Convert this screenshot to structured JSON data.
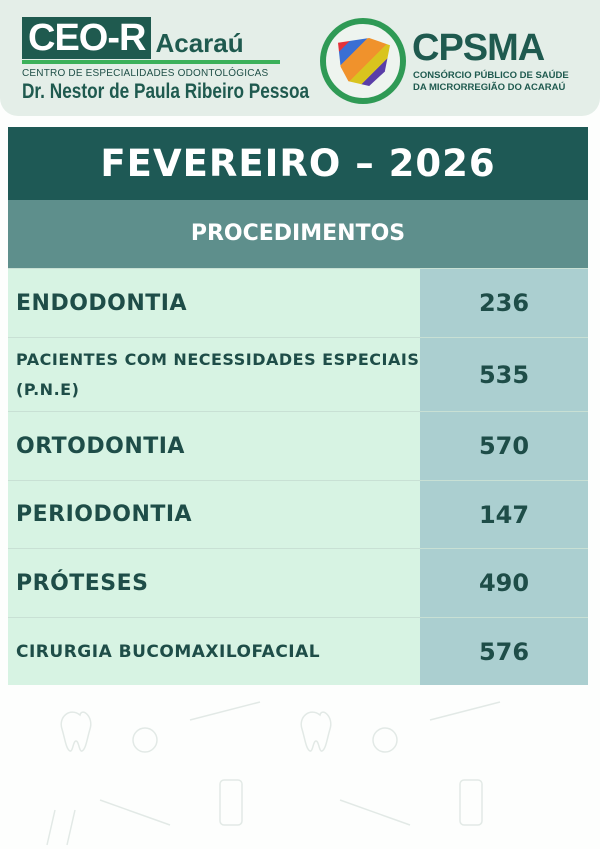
{
  "header": {
    "ceo_logo": "CEO-R",
    "ceo_city": "Acaraú",
    "ceo_subtitle": "CENTRO DE ESPECIALIDADES ODONTOLÓGICAS",
    "ceo_name": "Dr. Nestor de Paula Ribeiro Pessoa",
    "cpsma_logo": "CPSMA",
    "cpsma_line1": "CONSÓRCIO PÚBLICO DE SAÚDE",
    "cpsma_line2": "DA MICRORREGIÃO DO ACARAÚ"
  },
  "table": {
    "title": "FEVEREIRO – 2026",
    "column_header": "PROCEDIMENTOS",
    "rows": [
      {
        "label": "ENDODONTIA",
        "value": "236"
      },
      {
        "label": "PACIENTES COM NECESSIDADES ESPECIAIS (P.N.E)",
        "value": "535"
      },
      {
        "label": "ORTODONTIA",
        "value": "570"
      },
      {
        "label": "PERIODONTIA",
        "value": "147"
      },
      {
        "label": "PRÓTESES",
        "value": "490"
      },
      {
        "label": "CIRURGIA BUCOMAXILOFACIAL",
        "value": "576"
      }
    ]
  },
  "colors": {
    "dark_teal": "#1e5955",
    "mid_teal": "#5e8f8c",
    "light_green": "#d7f3e3",
    "value_cell": "#abcfd0",
    "brand_green": "#2f9a55"
  }
}
